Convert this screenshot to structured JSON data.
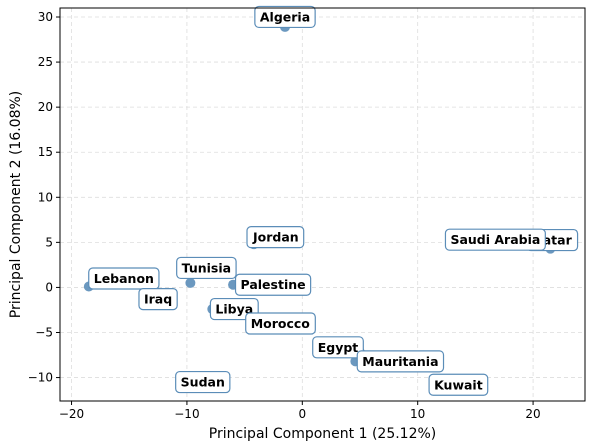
{
  "chart_data": {
    "type": "scatter",
    "title": "",
    "xlabel": "Principal Component 1 (25.12%)",
    "ylabel": "Principal Component 2 (16.08%)",
    "xlim": [
      -21,
      24.5
    ],
    "ylim": [
      -12.6,
      31
    ],
    "xticks": [
      -20,
      -10,
      0,
      10,
      20
    ],
    "yticks": [
      -10,
      -5,
      0,
      5,
      10,
      15,
      20,
      25,
      30
    ],
    "grid": true,
    "point_color": "#5b8db8",
    "label_border_color": "#5b8db8",
    "points": [
      {
        "label": "Algeria",
        "x": -1.5,
        "y": 28.9
      },
      {
        "label": "Qatar",
        "x": 22.5,
        "y": 4.7
      },
      {
        "label": "Saudi Arabia",
        "x": 21.5,
        "y": 4.3
      },
      {
        "label": "Jordan",
        "x": -4.2,
        "y": 4.8
      },
      {
        "label": "Lebanon",
        "x": -18.5,
        "y": 0.1
      },
      {
        "label": "Tunisia",
        "x": -9.7,
        "y": 0.5
      },
      {
        "label": "Palestine",
        "x": -6.0,
        "y": 0.3
      },
      {
        "label": "Iraq",
        "x": -12.5,
        "y": -1.3
      },
      {
        "label": "Libya",
        "x": -7.8,
        "y": -2.4
      },
      {
        "label": "Morocco",
        "x": 0.0,
        "y": -4.0
      },
      {
        "label": "Egypt",
        "x": 5.0,
        "y": -7.2
      },
      {
        "label": "Mauritania",
        "x": 4.6,
        "y": -8.2
      },
      {
        "label": "Sudan",
        "x": -7.5,
        "y": -10.5
      },
      {
        "label": "Kuwait",
        "x": 15.0,
        "y": -10.8
      }
    ]
  }
}
